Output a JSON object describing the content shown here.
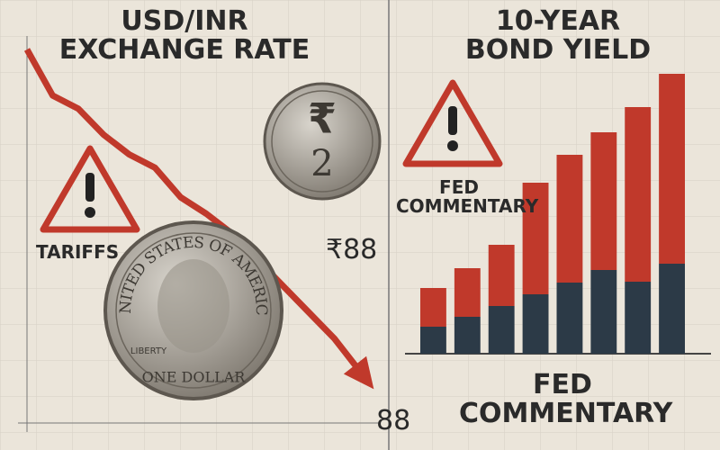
{
  "chart_data": [
    {
      "type": "line",
      "title": "USD/INR EXCHANGE RATE",
      "color": "#c0392b",
      "values": [
        100,
        86,
        82,
        74,
        68,
        64,
        55,
        50,
        44,
        36,
        28,
        20,
        12,
        2
      ],
      "annotations": [
        "TARIFFS",
        "₹88",
        "88"
      ]
    },
    {
      "type": "bar",
      "stacked": true,
      "title": "10-YEAR BOND YIELD",
      "series": [
        {
          "color": "#2c3a47",
          "values": [
            30,
            41,
            53,
            66,
            79,
            93,
            80,
            100
          ]
        },
        {
          "color": "#c0392b",
          "values": [
            43,
            54,
            68,
            124,
            142,
            153,
            194,
            211
          ]
        }
      ],
      "annotations": [
        "FED COMMENTARY",
        "FED COMMENTARY"
      ]
    }
  ],
  "coins": {
    "rupee": {
      "symbol": "₹",
      "value": "2"
    },
    "dollar": {
      "rim": "UNITED STATES OF AMERICA",
      "left": "LIBERTY",
      "bottom": "ONE DOLLAR"
    }
  }
}
